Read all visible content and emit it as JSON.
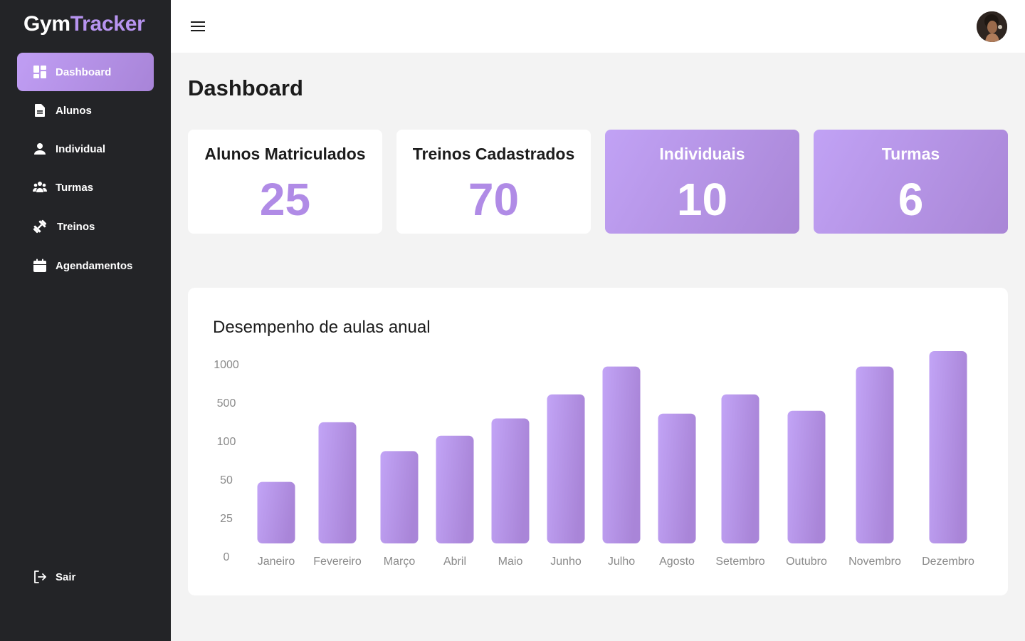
{
  "app": {
    "logo_part1": "Gym",
    "logo_part2": "Tracker"
  },
  "sidebar": {
    "items": [
      {
        "label": "Dashboard",
        "icon": "dashboard-icon",
        "active": true
      },
      {
        "label": "Alunos",
        "icon": "document-icon"
      },
      {
        "label": "Individual",
        "icon": "person-icon"
      },
      {
        "label": "Turmas",
        "icon": "group-icon"
      },
      {
        "label": "Treinos",
        "icon": "dumbbell-icon"
      },
      {
        "label": "Agendamentos",
        "icon": "calendar-icon"
      }
    ],
    "logout_label": "Sair"
  },
  "header": {
    "menu_icon": "hamburger-icon",
    "avatar": "user-avatar"
  },
  "main": {
    "title": "Dashboard",
    "cards": [
      {
        "label": "Alunos Matriculados",
        "value": "25"
      },
      {
        "label": "Treinos Cadastrados",
        "value": "70"
      },
      {
        "label": "Individuais",
        "value": "10"
      },
      {
        "label": "Turmas",
        "value": "6"
      }
    ]
  },
  "colors": {
    "accent": "#b08be6",
    "gradient_start": "#c1a2f5",
    "gradient_end": "#a986d6",
    "sidebar_bg": "#232427"
  },
  "chart_data": {
    "type": "bar",
    "title": "Desempenho de aulas anual",
    "categories": [
      "Janeiro",
      "Fevereiro",
      "Março",
      "Abril",
      "Maio",
      "Junho",
      "Julho",
      "Agosto",
      "Setembro",
      "Outubro",
      "Novembro",
      "Dezembro"
    ],
    "values": [
      40,
      160,
      70,
      90,
      200,
      450,
      800,
      250,
      450,
      280,
      800,
      1000
    ],
    "y_ticks": [
      "0",
      "25",
      "50",
      "100",
      "500",
      "1000"
    ],
    "y_scale": "ordinal-tick",
    "grid": false,
    "legend": "none"
  }
}
